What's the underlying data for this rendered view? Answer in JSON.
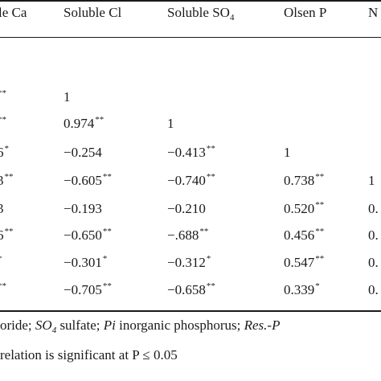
{
  "headers": [
    {
      "text": "le Ca",
      "sub": ""
    },
    {
      "text": "Soluble Cl",
      "sub": ""
    },
    {
      "text": "Soluble SO",
      "sub": "4"
    },
    {
      "text": "Olsen P",
      "sub": ""
    },
    {
      "text": "N",
      "sub": ""
    }
  ],
  "rows": [
    [
      {
        "v": "",
        "s": "**"
      },
      {
        "v": "1",
        "s": ""
      },
      {
        "v": "",
        "s": ""
      },
      {
        "v": "",
        "s": ""
      },
      {
        "v": "",
        "s": ""
      }
    ],
    [
      {
        "v": "",
        "s": "**"
      },
      {
        "v": "0.974",
        "s": "**"
      },
      {
        "v": "1",
        "s": ""
      },
      {
        "v": "",
        "s": ""
      },
      {
        "v": "",
        "s": ""
      }
    ],
    [
      {
        "v": "6",
        "s": "*"
      },
      {
        "v": "−0.254",
        "s": ""
      },
      {
        "v": "−0.413",
        "s": "**"
      },
      {
        "v": "1",
        "s": ""
      },
      {
        "v": "",
        "s": ""
      }
    ],
    [
      {
        "v": "3",
        "s": "**"
      },
      {
        "v": "−0.605",
        "s": "**"
      },
      {
        "v": "−0.740",
        "s": "**"
      },
      {
        "v": "0.738",
        "s": "**"
      },
      {
        "v": "1",
        "s": ""
      }
    ],
    [
      {
        "v": "3",
        "s": ""
      },
      {
        "v": "−0.193",
        "s": ""
      },
      {
        "v": "−0.210",
        "s": ""
      },
      {
        "v": "0.520",
        "s": "**"
      },
      {
        "v": "0.",
        "s": ""
      }
    ],
    [
      {
        "v": "6",
        "s": "**"
      },
      {
        "v": "−0.650",
        "s": "**"
      },
      {
        "v": "−.688",
        "s": "**"
      },
      {
        "v": "0.456",
        "s": "**"
      },
      {
        "v": "0.",
        "s": ""
      }
    ],
    [
      {
        "v": "",
        "s": "*"
      },
      {
        "v": "−0.301",
        "s": "*"
      },
      {
        "v": "−0.312",
        "s": "*"
      },
      {
        "v": "0.547",
        "s": "**"
      },
      {
        "v": "0.",
        "s": ""
      }
    ],
    [
      {
        "v": "",
        "s": "**"
      },
      {
        "v": "−0.705",
        "s": "**"
      },
      {
        "v": "−0.658",
        "s": "**"
      },
      {
        "v": "0.339",
        "s": "*"
      },
      {
        "v": "0.",
        "s": ""
      }
    ]
  ],
  "footnote1": [
    {
      "t": "oride; ",
      "i": false
    },
    {
      "t": "SO",
      "i": true,
      "sub": "4"
    },
    {
      "t": " sulfate; ",
      "i": false
    },
    {
      "t": "Pi",
      "i": true
    },
    {
      "t": " inorganic phosphorus; ",
      "i": false
    },
    {
      "t": "Res.-P",
      "i": true
    }
  ],
  "footnote2": "relation is significant at P ≤ 0.05"
}
